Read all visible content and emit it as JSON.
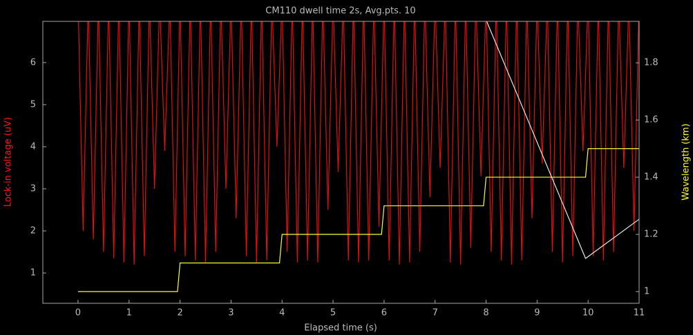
{
  "chart_data": {
    "type": "line",
    "title": "CM110 dwell time 2s, Avg.pts. 10",
    "xlabel": "Elapsed time (s)",
    "ylabel": "Lock-in voltage (uV)",
    "y2label": "Wavelength (km)",
    "xlim": [
      -0.69,
      11
    ],
    "ylim": [
      0.28,
      6.98
    ],
    "y2lim": [
      0.959,
      1.945
    ],
    "xticks": [
      0,
      1,
      2,
      3,
      4,
      5,
      6,
      7,
      8,
      9,
      10,
      11
    ],
    "yticks": [
      1,
      2,
      3,
      4,
      5,
      6
    ],
    "y2ticks": [
      1,
      1.2,
      1.4,
      1.6,
      1.8
    ],
    "ylabel_color": "#ff1a1a",
    "y2label_color": "#ffff33",
    "series": [
      {
        "color": "#e01010",
        "axis": "y",
        "x": [
          0,
          0.1,
          0.2,
          0.3,
          0.4,
          0.5,
          0.6,
          0.7,
          0.8,
          0.9,
          1,
          1.1,
          1.2,
          1.3,
          1.4,
          1.5,
          1.6,
          1.7,
          1.8,
          1.9,
          2,
          2.1,
          2.2,
          2.3,
          2.4,
          2.5,
          2.6,
          2.7,
          2.8,
          2.9,
          3,
          3.1,
          3.2,
          3.3,
          3.4,
          3.5,
          3.6,
          3.7,
          3.8,
          3.9,
          4,
          4.1,
          4.2,
          4.3,
          4.4,
          4.5,
          4.6,
          4.7,
          4.8,
          4.9,
          5,
          5.1,
          5.2,
          5.3,
          5.4,
          5.5,
          5.6,
          5.7,
          5.8,
          5.9,
          6,
          6.1,
          6.2,
          6.3,
          6.4,
          6.5,
          6.6,
          6.7,
          6.8,
          6.9,
          7,
          7.1,
          7.2,
          7.3,
          7.4,
          7.5,
          7.6,
          7.7,
          7.8,
          7.9,
          8,
          8.1,
          8.2,
          8.3,
          8.4,
          8.5,
          8.6,
          8.7,
          8.8,
          8.9,
          9,
          9.1,
          9.2,
          9.3,
          9.4,
          9.5,
          9.6,
          9.7,
          9.8,
          9.9,
          10,
          10.1,
          10.2,
          10.3,
          10.4,
          10.5,
          10.6,
          10.7,
          10.8,
          10.9,
          11
        ],
        "values": [
          7.5,
          2.0,
          7.5,
          1.8,
          7.5,
          1.5,
          7.5,
          1.35,
          7.5,
          1.25,
          7.5,
          1.2,
          7.5,
          1.4,
          7.5,
          3.0,
          7.5,
          3.9,
          7.5,
          1.5,
          7.5,
          1.4,
          7.5,
          1.3,
          7.5,
          1.25,
          7.5,
          1.5,
          7.5,
          3.0,
          7.5,
          2.3,
          7.5,
          1.4,
          7.5,
          1.25,
          7.5,
          1.3,
          7.5,
          4.0,
          7.5,
          1.5,
          7.5,
          1.25,
          7.5,
          1.3,
          7.5,
          1.25,
          7.5,
          2.5,
          7.5,
          3.4,
          7.5,
          1.3,
          7.5,
          1.25,
          7.5,
          1.3,
          7.5,
          2.1,
          7.5,
          1.3,
          7.5,
          1.2,
          7.5,
          1.25,
          7.5,
          1.5,
          7.5,
          2.8,
          7.5,
          3.5,
          7.5,
          1.25,
          7.5,
          1.2,
          7.5,
          1.6,
          7.5,
          3.3,
          7.5,
          1.5,
          7.5,
          1.3,
          7.5,
          1.2,
          7.5,
          1.3,
          7.5,
          2.3,
          7.5,
          3.6,
          7.5,
          1.5,
          7.5,
          1.25,
          7.5,
          1.4,
          7.5,
          3.9,
          7.5,
          1.4,
          7.5,
          1.3,
          7.5,
          1.5,
          7.5,
          3.5,
          7.5,
          2.0,
          7.5
        ]
      },
      {
        "color": "#ffff33",
        "axis": "y2",
        "x": [
          0,
          1.95,
          2.0,
          3.95,
          4.0,
          5.95,
          6.0,
          7.95,
          8.0,
          9.95,
          10.0,
          11
        ],
        "values": [
          1,
          1,
          1.1,
          1.1,
          1.2,
          1.2,
          1.3,
          1.3,
          1.4,
          1.4,
          1.5,
          1.5
        ]
      },
      {
        "color": "#e8e8e8",
        "axis": "y2",
        "x": [
          8,
          9.95,
          11
        ],
        "values": [
          1.95,
          1.116,
          1.253
        ]
      }
    ]
  }
}
